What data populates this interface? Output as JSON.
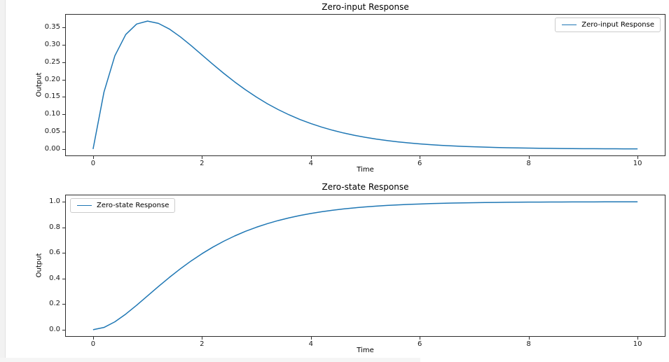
{
  "figure": {
    "background": "#ffffff",
    "page_background": "#f2f2f2",
    "spine_color": "#2e2e2e",
    "accent_line_color": "#1f77b4"
  },
  "chart_data": [
    {
      "id": "zero-input",
      "type": "line",
      "title": "Zero-input Response",
      "xlabel": "Time",
      "ylabel": "Output",
      "xlim": [
        -0.5,
        10.5
      ],
      "ylim": [
        -0.0184,
        0.3863
      ],
      "grid": false,
      "xticks": [
        0,
        2,
        4,
        6,
        8,
        10
      ],
      "xtick_labels": [
        "0",
        "2",
        "4",
        "6",
        "8",
        "10"
      ],
      "yticks": [
        0.0,
        0.05,
        0.1,
        0.15,
        0.2,
        0.25,
        0.3,
        0.35
      ],
      "ytick_labels": [
        "0.00",
        "0.05",
        "0.10",
        "0.15",
        "0.20",
        "0.25",
        "0.30",
        "0.35"
      ],
      "legend": {
        "position": "upper right",
        "entries": [
          {
            "label": "Zero-input Response",
            "color": "#1f77b4"
          }
        ]
      },
      "series": [
        {
          "name": "Zero-input Response",
          "color": "#1f77b4",
          "x": [
            0,
            0.2,
            0.4,
            0.6,
            0.8,
            1.0,
            1.2,
            1.4,
            1.6,
            1.8,
            2.0,
            2.2,
            2.4,
            2.6,
            2.8,
            3.0,
            3.2,
            3.4,
            3.6,
            3.8,
            4.0,
            4.2,
            4.4,
            4.6,
            4.8,
            5.0,
            5.2,
            5.4,
            5.6,
            5.8,
            6.0,
            6.2,
            6.4,
            6.6,
            6.8,
            7.0,
            7.2,
            7.4,
            7.6,
            7.8,
            8.0,
            8.2,
            8.4,
            8.6,
            8.8,
            9.0,
            9.2,
            9.4,
            9.6,
            9.8,
            10.0
          ],
          "y": [
            0.0,
            0.1637,
            0.2681,
            0.3293,
            0.3595,
            0.3679,
            0.3614,
            0.3452,
            0.323,
            0.2975,
            0.2707,
            0.2438,
            0.2177,
            0.1931,
            0.1703,
            0.1494,
            0.1304,
            0.1135,
            0.0984,
            0.085,
            0.0733,
            0.063,
            0.054,
            0.0462,
            0.0395,
            0.0337,
            0.0287,
            0.0244,
            0.0207,
            0.0176,
            0.0149,
            0.0126,
            0.0106,
            0.009,
            0.0076,
            0.0064,
            0.0054,
            0.0045,
            0.0038,
            0.0032,
            0.0027,
            0.0022,
            0.0019,
            0.0016,
            0.0013,
            0.0011,
            0.0009,
            0.0008,
            0.0006,
            0.0005,
            0.0005
          ]
        }
      ]
    },
    {
      "id": "zero-state",
      "type": "line",
      "title": "Zero-state Response",
      "xlabel": "Time",
      "ylabel": "Output",
      "xlim": [
        -0.5,
        10.5
      ],
      "ylim": [
        -0.05,
        1.05
      ],
      "grid": false,
      "xticks": [
        0,
        2,
        4,
        6,
        8,
        10
      ],
      "xtick_labels": [
        "0",
        "2",
        "4",
        "6",
        "8",
        "10"
      ],
      "yticks": [
        0.0,
        0.2,
        0.4,
        0.6,
        0.8,
        1.0
      ],
      "ytick_labels": [
        "0.0",
        "0.2",
        "0.4",
        "0.6",
        "0.8",
        "1.0"
      ],
      "legend": {
        "position": "upper left",
        "entries": [
          {
            "label": "Zero-state Response",
            "color": "#1f77b4"
          }
        ]
      },
      "series": [
        {
          "name": "Zero-state Response",
          "color": "#1f77b4",
          "x": [
            0,
            0.2,
            0.4,
            0.6,
            0.8,
            1.0,
            1.2,
            1.4,
            1.6,
            1.8,
            2.0,
            2.2,
            2.4,
            2.6,
            2.8,
            3.0,
            3.2,
            3.4,
            3.6,
            3.8,
            4.0,
            4.2,
            4.4,
            4.6,
            4.8,
            5.0,
            5.2,
            5.4,
            5.6,
            5.8,
            6.0,
            6.2,
            6.4,
            6.6,
            6.8,
            7.0,
            7.2,
            7.4,
            7.6,
            7.8,
            8.0,
            8.2,
            8.4,
            8.6,
            8.8,
            9.0,
            9.2,
            9.4,
            9.6,
            9.8,
            10.0
          ],
          "y": [
            0.0,
            0.0175,
            0.0616,
            0.1219,
            0.1912,
            0.2642,
            0.3374,
            0.4082,
            0.4751,
            0.5372,
            0.594,
            0.6454,
            0.6916,
            0.7326,
            0.7689,
            0.8009,
            0.8288,
            0.8532,
            0.8743,
            0.8926,
            0.9084,
            0.922,
            0.9337,
            0.9437,
            0.9523,
            0.9596,
            0.9658,
            0.9711,
            0.9756,
            0.9794,
            0.9826,
            0.9854,
            0.9877,
            0.9897,
            0.9913,
            0.9927,
            0.9939,
            0.9949,
            0.9957,
            0.9964,
            0.997,
            0.9975,
            0.9979,
            0.9982,
            0.9985,
            0.9988,
            0.999,
            0.9991,
            0.9993,
            0.9994,
            0.9995
          ]
        }
      ]
    }
  ]
}
